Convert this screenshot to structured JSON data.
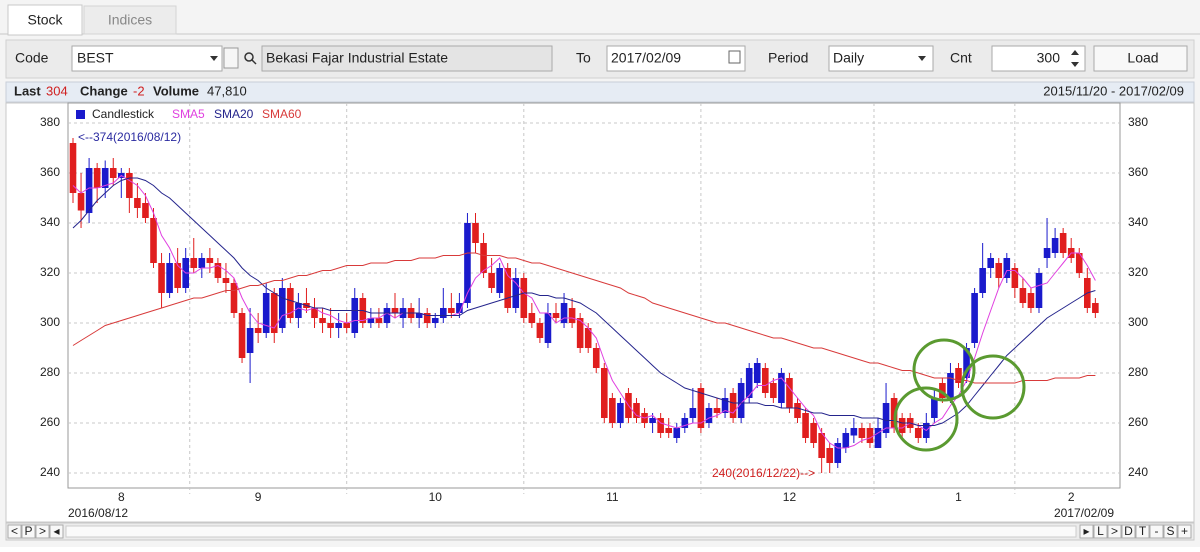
{
  "tabs": [
    "Stock",
    "Indices"
  ],
  "toolbar": {
    "code_label": "Code",
    "code": "BEST",
    "name": "Bekasi Fajar Industrial Estate",
    "to_label": "To",
    "to": "2017/02/09",
    "period_label": "Period",
    "period": "Daily",
    "cnt_label": "Cnt",
    "cnt": 300,
    "load": "Load"
  },
  "summary": {
    "last_label": "Last",
    "last": 304,
    "change_label": "Change",
    "change": -2,
    "volume_label": "Volume",
    "volume": "47,810",
    "range": "2015/11/20 - 2017/02/09"
  },
  "nav_left": [
    "<",
    "P",
    ">",
    "◂"
  ],
  "nav_right": [
    "▸",
    "L",
    ">",
    "D",
    "T",
    "-",
    "S",
    "+"
  ],
  "chart_data": {
    "type": "candlestick",
    "candle_name": "Candlestick",
    "legend_color": "#1a1acc",
    "up_color": "#1a1acc",
    "down_color": "#e01e1e",
    "ylim": [
      234,
      388
    ],
    "yticks": [
      240,
      260,
      280,
      300,
      320,
      340,
      360,
      380
    ],
    "grid": true,
    "x_start": "2016/08/12",
    "x_end": "2017/02/09",
    "annotations": [
      {
        "text": "<--374(2016/08/12)",
        "color": "#2a2aa0"
      },
      {
        "text": "240(2016/12/22)-->",
        "color": "#d02020"
      }
    ],
    "categories": [
      null,
      null,
      null,
      null,
      null,
      null,
      "8",
      null,
      null,
      null,
      null,
      null,
      null,
      null,
      null,
      null,
      null,
      null,
      null,
      null,
      null,
      null,
      null,
      "9",
      null,
      null,
      null,
      null,
      null,
      null,
      null,
      null,
      null,
      null,
      null,
      null,
      null,
      null,
      null,
      null,
      null,
      null,
      null,
      null,
      null,
      "10",
      null,
      null,
      null,
      null,
      null,
      null,
      null,
      null,
      null,
      null,
      null,
      null,
      null,
      null,
      null,
      null,
      null,
      null,
      null,
      null,
      null,
      "11",
      null,
      null,
      null,
      null,
      null,
      null,
      null,
      null,
      null,
      null,
      null,
      null,
      null,
      null,
      null,
      null,
      null,
      null,
      null,
      null,
      null,
      "12",
      null,
      null,
      null,
      null,
      null,
      null,
      null,
      null,
      null,
      null,
      null,
      null,
      null,
      null,
      null,
      null,
      null,
      null,
      null,
      null,
      "1",
      null,
      null,
      null,
      null,
      null,
      null,
      null,
      null,
      null,
      null,
      null,
      null,
      null,
      "2",
      null,
      null,
      null
    ],
    "ohlc": [
      [
        372,
        374,
        348,
        352
      ],
      [
        352,
        360,
        338,
        345
      ],
      [
        344,
        366,
        340,
        362
      ],
      [
        362,
        364,
        348,
        354
      ],
      [
        354,
        365,
        350,
        362
      ],
      [
        362,
        366,
        355,
        358
      ],
      [
        358,
        362,
        350,
        360
      ],
      [
        360,
        362,
        344,
        350
      ],
      [
        350,
        356,
        342,
        346
      ],
      [
        348,
        352,
        340,
        342
      ],
      [
        342,
        346,
        322,
        324
      ],
      [
        324,
        328,
        306,
        312
      ],
      [
        312,
        328,
        310,
        324
      ],
      [
        324,
        330,
        312,
        314
      ],
      [
        314,
        330,
        312,
        326
      ],
      [
        326,
        334,
        320,
        322
      ],
      [
        322,
        328,
        318,
        326
      ],
      [
        326,
        330,
        320,
        324
      ],
      [
        324,
        326,
        316,
        318
      ],
      [
        318,
        324,
        312,
        316
      ],
      [
        316,
        318,
        302,
        304
      ],
      [
        304,
        306,
        284,
        286
      ],
      [
        288,
        306,
        276,
        298
      ],
      [
        298,
        304,
        292,
        296
      ],
      [
        296,
        316,
        294,
        312
      ],
      [
        312,
        314,
        292,
        296
      ],
      [
        298,
        318,
        296,
        314
      ],
      [
        314,
        316,
        300,
        302
      ],
      [
        302,
        312,
        298,
        308
      ],
      [
        308,
        314,
        304,
        306
      ],
      [
        306,
        310,
        298,
        302
      ],
      [
        302,
        306,
        296,
        300
      ],
      [
        300,
        306,
        294,
        298
      ],
      [
        298,
        304,
        294,
        300
      ],
      [
        300,
        304,
        296,
        298
      ],
      [
        296,
        314,
        294,
        310
      ],
      [
        310,
        312,
        298,
        300
      ],
      [
        300,
        306,
        298,
        302
      ],
      [
        302,
        306,
        298,
        300
      ],
      [
        300,
        308,
        298,
        306
      ],
      [
        306,
        312,
        302,
        304
      ],
      [
        302,
        310,
        298,
        306
      ],
      [
        306,
        308,
        300,
        302
      ],
      [
        302,
        310,
        298,
        304
      ],
      [
        304,
        306,
        298,
        300
      ],
      [
        300,
        304,
        298,
        302
      ],
      [
        302,
        314,
        300,
        306
      ],
      [
        306,
        312,
        302,
        304
      ],
      [
        304,
        312,
        302,
        308
      ],
      [
        308,
        344,
        306,
        340
      ],
      [
        340,
        344,
        328,
        332
      ],
      [
        332,
        336,
        318,
        320
      ],
      [
        320,
        326,
        312,
        314
      ],
      [
        312,
        324,
        310,
        322
      ],
      [
        322,
        324,
        304,
        306
      ],
      [
        306,
        322,
        304,
        318
      ],
      [
        318,
        320,
        300,
        302
      ],
      [
        304,
        308,
        298,
        300
      ],
      [
        300,
        302,
        292,
        294
      ],
      [
        292,
        308,
        290,
        304
      ],
      [
        304,
        308,
        300,
        302
      ],
      [
        300,
        312,
        298,
        308
      ],
      [
        306,
        310,
        298,
        300
      ],
      [
        302,
        304,
        288,
        290
      ],
      [
        298,
        300,
        288,
        290
      ],
      [
        290,
        292,
        280,
        282
      ],
      [
        282,
        284,
        260,
        262
      ],
      [
        270,
        272,
        258,
        260
      ],
      [
        260,
        270,
        258,
        268
      ],
      [
        272,
        274,
        260,
        262
      ],
      [
        268,
        270,
        260,
        262
      ],
      [
        264,
        266,
        258,
        260
      ],
      [
        260,
        264,
        256,
        262
      ],
      [
        262,
        264,
        254,
        256
      ],
      [
        258,
        262,
        254,
        256
      ],
      [
        254,
        260,
        252,
        258
      ],
      [
        258,
        264,
        256,
        262
      ],
      [
        262,
        274,
        260,
        266
      ],
      [
        274,
        276,
        256,
        258
      ],
      [
        260,
        268,
        258,
        266
      ],
      [
        266,
        270,
        262,
        264
      ],
      [
        264,
        274,
        262,
        270
      ],
      [
        272,
        274,
        260,
        262
      ],
      [
        262,
        278,
        260,
        276
      ],
      [
        270,
        284,
        268,
        282
      ],
      [
        276,
        286,
        274,
        284
      ],
      [
        282,
        284,
        270,
        272
      ],
      [
        276,
        278,
        268,
        270
      ],
      [
        268,
        282,
        266,
        280
      ],
      [
        278,
        280,
        264,
        266
      ],
      [
        268,
        270,
        260,
        262
      ],
      [
        264,
        266,
        252,
        254
      ],
      [
        260,
        262,
        250,
        252
      ],
      [
        256,
        258,
        240,
        246
      ],
      [
        250,
        252,
        240,
        244
      ],
      [
        244,
        254,
        242,
        252
      ],
      [
        250,
        258,
        248,
        256
      ],
      [
        255,
        262,
        252,
        258
      ],
      [
        258,
        260,
        252,
        254
      ],
      [
        258,
        260,
        250,
        252
      ],
      [
        250,
        262,
        250,
        258
      ],
      [
        256,
        276,
        254,
        268
      ],
      [
        270,
        272,
        256,
        258
      ],
      [
        262,
        264,
        254,
        256
      ],
      [
        262,
        264,
        256,
        258
      ],
      [
        258,
        260,
        252,
        254
      ],
      [
        254,
        264,
        252,
        260
      ],
      [
        262,
        274,
        260,
        270
      ],
      [
        276,
        278,
        268,
        270
      ],
      [
        270,
        284,
        268,
        280
      ],
      [
        282,
        284,
        274,
        276
      ],
      [
        278,
        292,
        276,
        290
      ],
      [
        292,
        314,
        290,
        312
      ],
      [
        312,
        332,
        310,
        322
      ],
      [
        322,
        328,
        318,
        326
      ],
      [
        324,
        326,
        314,
        318
      ],
      [
        318,
        328,
        316,
        326
      ],
      [
        322,
        324,
        310,
        314
      ],
      [
        314,
        318,
        306,
        308
      ],
      [
        312,
        314,
        304,
        306
      ],
      [
        306,
        322,
        304,
        320
      ],
      [
        326,
        342,
        322,
        330
      ],
      [
        328,
        338,
        326,
        334
      ],
      [
        336,
        338,
        326,
        328
      ],
      [
        330,
        334,
        324,
        326
      ],
      [
        328,
        330,
        318,
        320
      ],
      [
        318,
        322,
        304,
        306
      ],
      [
        308,
        310,
        302,
        304
      ]
    ],
    "series": [
      {
        "name": "SMA5",
        "color": "#e040e0",
        "values": [
          355,
          352,
          354,
          354,
          355,
          356,
          359,
          357,
          355,
          351,
          344,
          335,
          330,
          323,
          320,
          320,
          322,
          322,
          323,
          321,
          318,
          310,
          304,
          300,
          299,
          298,
          303,
          304,
          306,
          305,
          306,
          304,
          303,
          301,
          300,
          301,
          301,
          302,
          302,
          304,
          302,
          304,
          304,
          304,
          303,
          303,
          303,
          303,
          304,
          312,
          318,
          321,
          323,
          326,
          319,
          316,
          312,
          310,
          304,
          304,
          300,
          302,
          302,
          301,
          298,
          294,
          285,
          277,
          272,
          267,
          263,
          262,
          263,
          260,
          259,
          258,
          259,
          260,
          260,
          262,
          263,
          265,
          264,
          268,
          271,
          275,
          275,
          277,
          278,
          274,
          270,
          266,
          263,
          256,
          252,
          250,
          250,
          251,
          253,
          254,
          256,
          258,
          258,
          258,
          260,
          259,
          257,
          260,
          262,
          267,
          271,
          277,
          286,
          296,
          305,
          314,
          321,
          321,
          318,
          314,
          315,
          316,
          320,
          324,
          328,
          328,
          323,
          317
        ]
      },
      {
        "name": "SMA20",
        "color": "#24248c",
        "values": [
          338,
          341,
          345,
          349,
          352,
          355,
          357,
          358,
          358,
          357,
          355,
          352,
          350,
          347,
          344,
          341,
          338,
          335,
          332,
          329,
          326,
          322,
          319,
          317,
          314,
          312,
          310,
          309,
          308,
          307,
          306,
          306,
          305,
          305,
          305,
          305,
          305,
          304,
          304,
          304,
          304,
          304,
          304,
          304,
          303,
          303,
          303,
          303,
          303,
          305,
          306,
          307,
          308,
          309,
          310,
          311,
          312,
          312,
          311,
          311,
          310,
          310,
          309,
          308,
          306,
          304,
          301,
          298,
          295,
          292,
          289,
          286,
          283,
          280,
          278,
          276,
          274,
          273,
          272,
          271,
          270,
          269,
          268,
          268,
          268,
          268,
          267,
          267,
          266,
          266,
          266,
          265,
          264,
          264,
          263,
          263,
          263,
          263,
          262,
          262,
          262,
          261,
          261,
          260,
          260,
          259,
          259,
          259,
          260,
          262,
          264,
          267,
          271,
          275,
          279,
          283,
          287,
          290,
          293,
          296,
          299,
          302,
          304,
          306,
          308,
          310,
          312,
          313
        ]
      },
      {
        "name": "SMA60",
        "color": "#d83a3a",
        "values": [
          291,
          293,
          295,
          297,
          299,
          300,
          301,
          302,
          303,
          304,
          305,
          306,
          307,
          308,
          309,
          310,
          310,
          311,
          312,
          313,
          313,
          314,
          315,
          315,
          316,
          317,
          317,
          318,
          319,
          319,
          320,
          321,
          321,
          322,
          323,
          323,
          323,
          324,
          324,
          324,
          325,
          325,
          325,
          326,
          326,
          326,
          327,
          327,
          327,
          328,
          328,
          327,
          327,
          327,
          326,
          326,
          325,
          324,
          324,
          323,
          322,
          321,
          320,
          319,
          318,
          317,
          316,
          315,
          314,
          312,
          311,
          310,
          308,
          307,
          306,
          305,
          304,
          303,
          302,
          301,
          300,
          300,
          299,
          298,
          297,
          296,
          295,
          294,
          294,
          293,
          292,
          291,
          290,
          290,
          289,
          288,
          287,
          286,
          285,
          284,
          284,
          283,
          282,
          281,
          281,
          280,
          279,
          278,
          278,
          278,
          277,
          277,
          276,
          276,
          276,
          276,
          276,
          276,
          277,
          277,
          277,
          277,
          278,
          278,
          278,
          278,
          279,
          279
        ]
      }
    ]
  }
}
